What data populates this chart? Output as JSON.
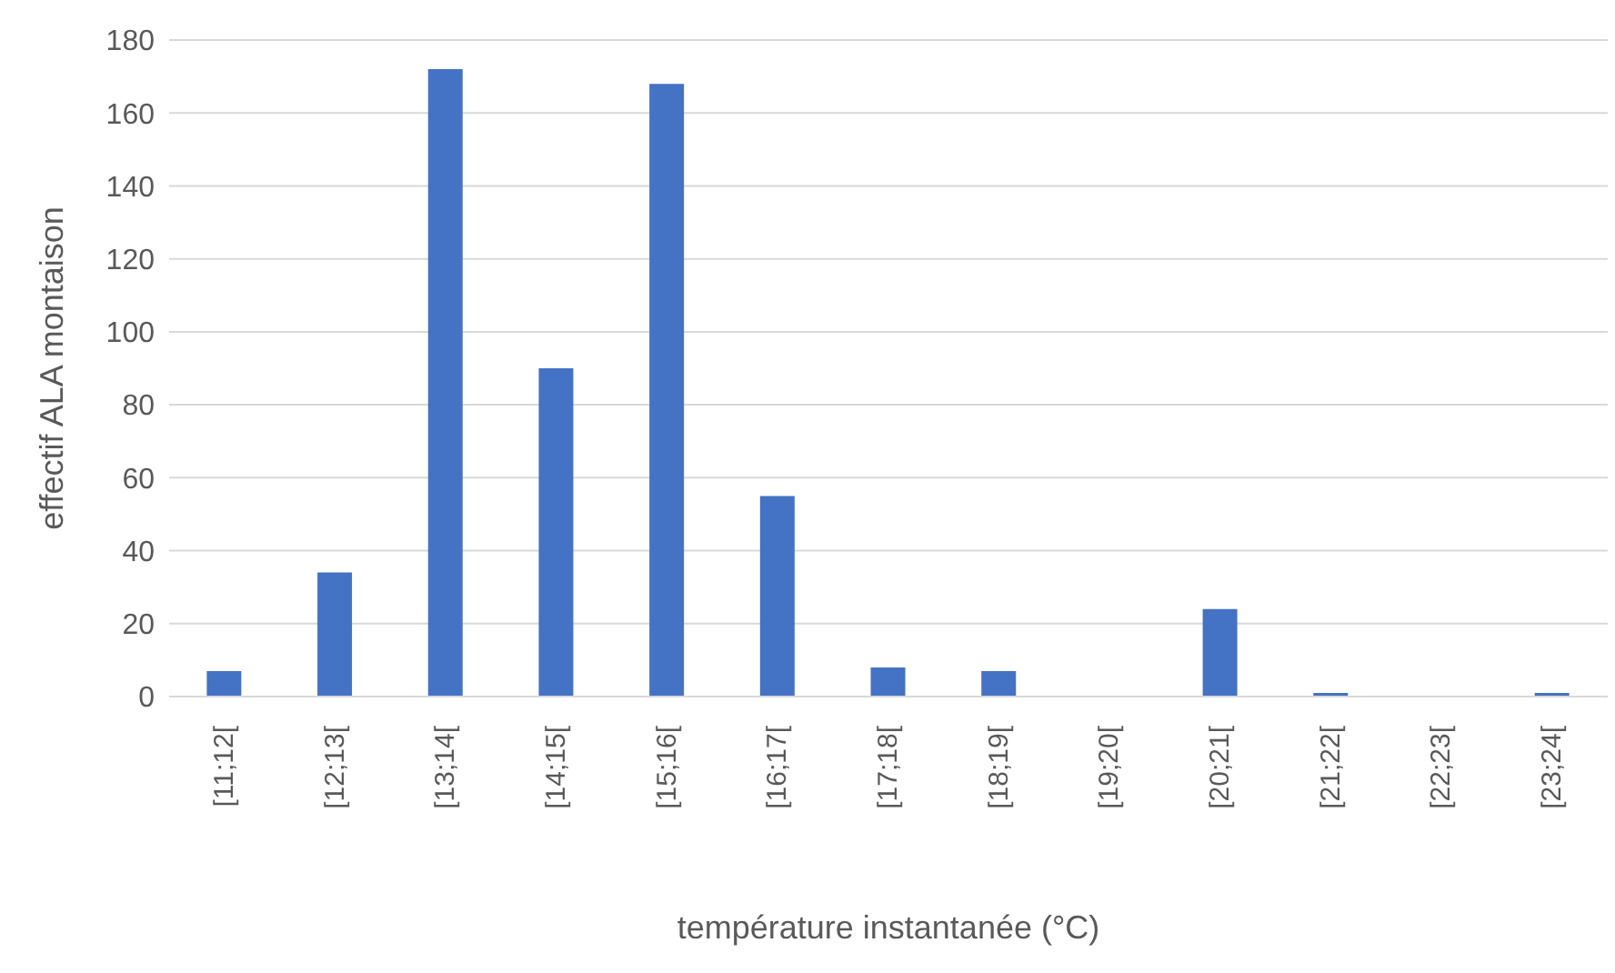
{
  "chart_data": {
    "type": "bar",
    "xlabel": "température instantanée (°C)",
    "ylabel": "effectif ALA montaison",
    "categories": [
      "[11;12[",
      "[12;13[",
      "[13;14[",
      "[14;15[",
      "[15;16[",
      "[16;17[",
      "[17;18[",
      "[18;19[",
      "[19;20[",
      "[20;21[",
      "[21;22[",
      "[22;23[",
      "[23;24["
    ],
    "series": [
      {
        "color": "#4472c4",
        "values": [
          7,
          34,
          172,
          90,
          168,
          55,
          8,
          7,
          0,
          24,
          1,
          0,
          1
        ]
      }
    ],
    "ylim": [
      0,
      180
    ],
    "yticks": [
      0,
      20,
      40,
      60,
      80,
      100,
      120,
      140,
      160,
      180
    ],
    "grid": "y",
    "legend": false
  }
}
